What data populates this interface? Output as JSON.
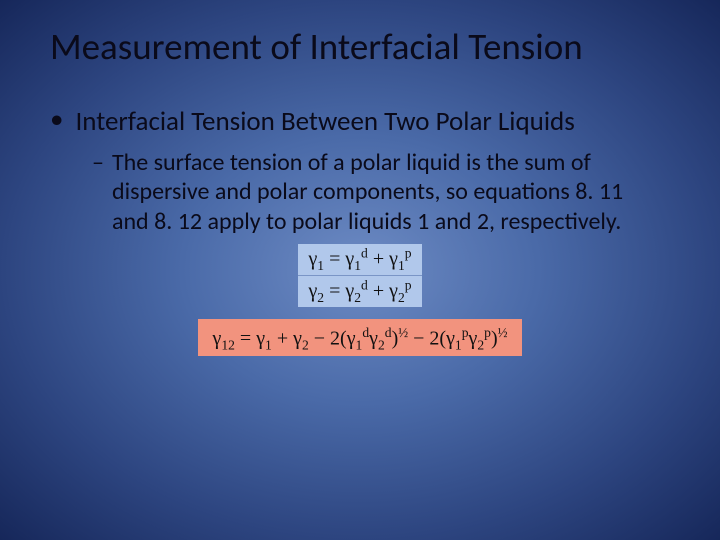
{
  "title": "Measurement of  Interfacial Tension",
  "bullet1": "Interfacial Tension Between Two Polar Liquids",
  "bullet2": "The surface tension of  a polar liquid  is the sum of dispersive and polar components, so equations 8. 11 and 8. 12 apply to polar liquids 1  and 2, respectively.",
  "eq_boxes": {
    "eq1": {
      "lhs_sub": "1",
      "rhs_a_sup": "d",
      "rhs_a_sub": "1",
      "rhs_b_sup": "p",
      "rhs_b_sub": "1"
    },
    "eq2": {
      "lhs_sub": "2",
      "rhs_a_sup": "d",
      "rhs_a_sub": "2",
      "rhs_b_sup": "p",
      "rhs_b_sub": "2"
    },
    "eq3": {
      "lhs_sub": "12",
      "t1_sub": "1",
      "t2_sub": "2",
      "p1_a_sup": "d",
      "p1_a_sub": "1",
      "p1_b_sup": "d",
      "p1_b_sub": "2",
      "p1_exp": "½",
      "p2_a_sup": "p",
      "p2_a_sub": "1",
      "p2_b_sup": "p",
      "p2_b_sub": "2",
      "p2_exp": "½"
    }
  },
  "colors": {
    "bg_center": "#6d8bc4",
    "bg_outer": "#16275a",
    "eq_blue": "#b1c8eb",
    "eq_pink": "#f2937e",
    "text": "#0a0a1a"
  },
  "fonts": {
    "title_size_pt": 28,
    "l1_size_pt": 20,
    "l2_size_pt": 18,
    "eq_size_pt": 15
  }
}
